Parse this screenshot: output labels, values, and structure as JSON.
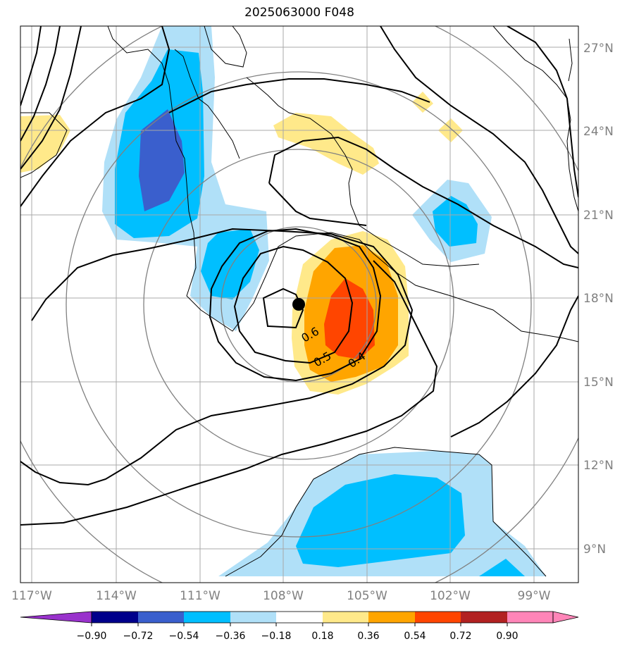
{
  "title": "2025063000 F048",
  "lat_labels": [
    "27°N",
    "24°N",
    "21°N",
    "18°N",
    "15°N",
    "12°N",
    "9°N"
  ],
  "lon_labels": [
    "117°W",
    "114°W",
    "111°W",
    "108°W",
    "105°W",
    "102°W",
    "99°W"
  ],
  "contour_labels": [
    "0.6",
    "0.5",
    "0.4"
  ],
  "colorbar": {
    "ticks": [
      "−0.90",
      "−0.72",
      "−0.54",
      "−0.36",
      "−0.18",
      "0.18",
      "0.36",
      "0.54",
      "0.72",
      "0.90"
    ],
    "colors": [
      "#9932cc",
      "#00008b",
      "#3a5fcd",
      "#00bfff",
      "#b0e0f8",
      "#ffffff",
      "#ffe98a",
      "#ffa500",
      "#ff4500",
      "#b22222",
      "#ff85b8"
    ]
  },
  "colors": {
    "neg_light": "#b0e0f8",
    "neg_mid": "#00bfff",
    "neg_dark": "#3a5fcd",
    "pos_light": "#ffe98a",
    "pos_mid": "#ffa500",
    "pos_dark": "#ff4500"
  },
  "storm_center": {
    "lon": "107.5°W",
    "lat": "17.8°N"
  }
}
